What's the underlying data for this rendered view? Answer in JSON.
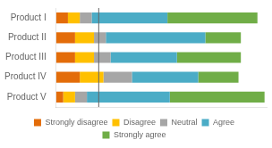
{
  "chart_data": {
    "type": "bar",
    "orientation": "horizontal",
    "stacked": true,
    "categories": [
      "Product I",
      "Product II",
      "Product III",
      "Product IV",
      "Product V"
    ],
    "series": [
      {
        "name": "Strongly disagree",
        "color": "#E36C09",
        "values": [
          5,
          8,
          8,
          10,
          3
        ]
      },
      {
        "name": "Disagree",
        "color": "#FFC000",
        "values": [
          5,
          8,
          8,
          10,
          5
        ]
      },
      {
        "name": "Neutral",
        "color": "#A6A6A6",
        "values": [
          5,
          5,
          7,
          12,
          5
        ]
      },
      {
        "name": "Agree",
        "color": "#4BACC6",
        "values": [
          32,
          42,
          28,
          28,
          35
        ]
      },
      {
        "name": "Strongly agree",
        "color": "#70AD47",
        "values": [
          38,
          15,
          27,
          17,
          40
        ]
      }
    ],
    "xlim": [
      0,
      88.88
    ],
    "vline": 18,
    "grid": false,
    "legend": "bottom",
    "tick_labels": "y"
  }
}
